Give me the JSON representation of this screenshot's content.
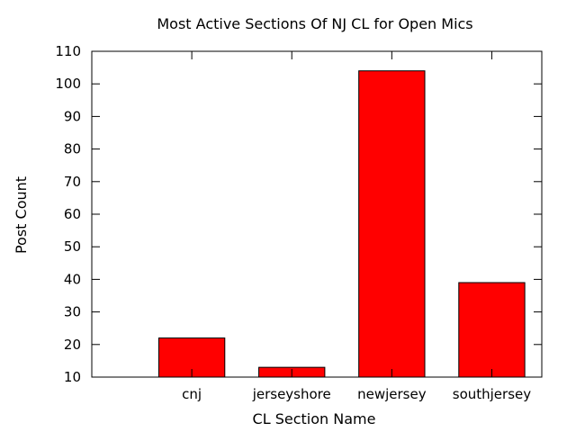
{
  "chart_data": {
    "type": "bar",
    "title": "Most Active Sections Of NJ CL for Open Mics",
    "xlabel": "CL Section Name",
    "ylabel": "Post Count",
    "categories": [
      "cnj",
      "jerseyshore",
      "newjersey",
      "southjersey"
    ],
    "values": [
      22,
      13,
      104,
      39
    ],
    "ylim": [
      10,
      110
    ],
    "yticks": [
      "10",
      "20",
      "30",
      "40",
      "50",
      "60",
      "70",
      "80",
      "90",
      "100",
      "110"
    ],
    "bar_color": "#ff0000",
    "bar_edge_color": "#000000",
    "grid": false,
    "legend": "none"
  }
}
